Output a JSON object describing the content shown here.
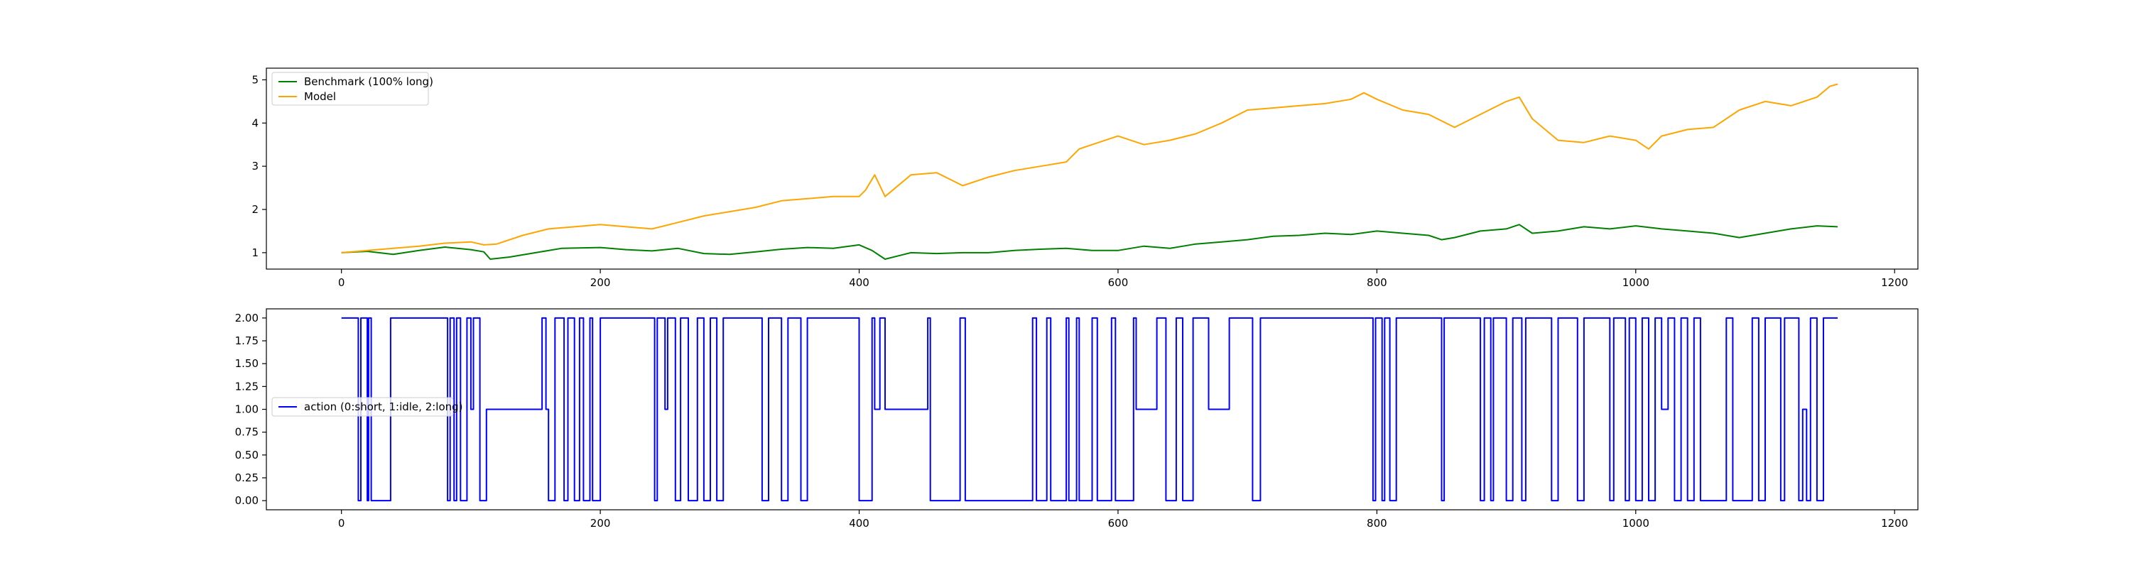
{
  "chart_data": [
    {
      "type": "line",
      "xlim": [
        -58,
        1218
      ],
      "ylim": [
        0.62,
        5.27
      ],
      "xticks": [
        0,
        200,
        400,
        600,
        800,
        1000,
        1200
      ],
      "yticks": [
        1,
        2,
        3,
        4,
        5
      ],
      "grid": false,
      "legend_placement": "top-left",
      "series": [
        {
          "name": "Benchmark (100% long)",
          "color": "#008000",
          "x": [
            0,
            20,
            40,
            60,
            80,
            100,
            110,
            115,
            130,
            150,
            170,
            200,
            220,
            240,
            260,
            280,
            300,
            320,
            340,
            360,
            380,
            400,
            410,
            420,
            440,
            460,
            480,
            500,
            520,
            540,
            560,
            580,
            600,
            620,
            640,
            660,
            680,
            700,
            720,
            740,
            760,
            780,
            800,
            820,
            840,
            850,
            860,
            880,
            900,
            910,
            920,
            940,
            960,
            980,
            1000,
            1020,
            1040,
            1060,
            1080,
            1100,
            1120,
            1140,
            1156
          ],
          "values": [
            1.0,
            1.03,
            0.96,
            1.05,
            1.13,
            1.07,
            1.02,
            0.85,
            0.9,
            1.0,
            1.1,
            1.12,
            1.07,
            1.04,
            1.1,
            0.98,
            0.96,
            1.02,
            1.08,
            1.12,
            1.1,
            1.18,
            1.05,
            0.85,
            1.0,
            0.98,
            1.0,
            1.0,
            1.05,
            1.08,
            1.1,
            1.05,
            1.05,
            1.15,
            1.1,
            1.2,
            1.25,
            1.3,
            1.38,
            1.4,
            1.45,
            1.42,
            1.5,
            1.45,
            1.4,
            1.3,
            1.35,
            1.5,
            1.55,
            1.65,
            1.45,
            1.5,
            1.6,
            1.55,
            1.62,
            1.55,
            1.5,
            1.45,
            1.35,
            1.45,
            1.55,
            1.62,
            1.6
          ]
        },
        {
          "name": "Model",
          "color": "#ffa500",
          "x": [
            0,
            20,
            40,
            60,
            80,
            100,
            110,
            120,
            140,
            160,
            180,
            200,
            220,
            240,
            260,
            280,
            300,
            320,
            340,
            360,
            380,
            400,
            405,
            412,
            420,
            440,
            460,
            480,
            500,
            520,
            540,
            560,
            570,
            580,
            600,
            620,
            640,
            660,
            680,
            700,
            720,
            740,
            760,
            780,
            790,
            800,
            820,
            840,
            860,
            880,
            900,
            910,
            920,
            940,
            960,
            980,
            1000,
            1010,
            1020,
            1040,
            1060,
            1080,
            1100,
            1120,
            1140,
            1150,
            1156
          ],
          "values": [
            1.0,
            1.05,
            1.1,
            1.15,
            1.22,
            1.25,
            1.18,
            1.2,
            1.4,
            1.55,
            1.6,
            1.65,
            1.6,
            1.55,
            1.7,
            1.85,
            1.95,
            2.05,
            2.2,
            2.25,
            2.3,
            2.3,
            2.45,
            2.8,
            2.3,
            2.8,
            2.85,
            2.55,
            2.75,
            2.9,
            3.0,
            3.1,
            3.4,
            3.5,
            3.7,
            3.5,
            3.6,
            3.75,
            4.0,
            4.3,
            4.35,
            4.4,
            4.45,
            4.55,
            4.7,
            4.55,
            4.3,
            4.2,
            3.9,
            4.2,
            4.5,
            4.6,
            4.1,
            3.6,
            3.55,
            3.7,
            3.6,
            3.4,
            3.7,
            3.85,
            3.9,
            4.3,
            4.5,
            4.4,
            4.6,
            4.85,
            4.9
          ]
        }
      ]
    },
    {
      "type": "line",
      "xlim": [
        -58,
        1218
      ],
      "ylim": [
        -0.1,
        2.1
      ],
      "xticks": [
        0,
        200,
        400,
        600,
        800,
        1000,
        1200
      ],
      "yticks": [
        0.0,
        0.25,
        0.5,
        0.75,
        1.0,
        1.25,
        1.5,
        1.75,
        2.0
      ],
      "ytick_labels": [
        "0.00",
        "0.25",
        "0.50",
        "0.75",
        "1.00",
        "1.25",
        "1.50",
        "1.75",
        "2.00"
      ],
      "grid": false,
      "legend_placement": "center-left",
      "series": [
        {
          "name": "action (0:short, 1:idle, 2:long)",
          "color": "#0000ff",
          "step": true,
          "x": [
            0,
            13,
            15,
            16,
            20,
            21,
            23,
            25,
            38,
            82,
            84,
            87,
            89,
            92,
            97,
            100,
            102,
            107,
            112,
            155,
            158,
            160,
            165,
            172,
            175,
            180,
            184,
            187,
            192,
            194,
            200,
            242,
            244,
            250,
            252,
            258,
            262,
            268,
            275,
            280,
            285,
            290,
            295,
            325,
            330,
            340,
            345,
            355,
            360,
            400,
            410,
            412,
            416,
            420,
            453,
            455,
            478,
            482,
            534,
            537,
            545,
            548,
            560,
            562,
            568,
            570,
            580,
            584,
            595,
            598,
            612,
            614,
            630,
            637,
            645,
            650,
            658,
            670,
            686,
            704,
            710,
            797,
            799,
            804,
            806,
            810,
            815,
            850,
            852,
            880,
            883,
            888,
            890,
            900,
            905,
            912,
            915,
            935,
            940,
            955,
            960,
            980,
            983,
            992,
            995,
            1000,
            1005,
            1010,
            1015,
            1020,
            1025,
            1030,
            1035,
            1040,
            1045,
            1050,
            1070,
            1075,
            1090,
            1095,
            1100,
            1112,
            1115,
            1126,
            1129,
            1132,
            1135,
            1140,
            1145,
            1156
          ],
          "values": [
            2,
            0,
            2,
            2,
            0,
            2,
            0,
            0,
            2,
            0,
            2,
            0,
            2,
            0,
            2,
            1,
            2,
            0,
            1,
            2,
            1,
            0,
            2,
            0,
            2,
            0,
            2,
            0,
            2,
            0,
            2,
            0,
            2,
            1,
            2,
            0,
            2,
            0,
            2,
            0,
            2,
            0,
            2,
            0,
            2,
            0,
            2,
            0,
            2,
            0,
            2,
            1,
            2,
            1,
            2,
            0,
            2,
            0,
            2,
            0,
            2,
            0,
            2,
            0,
            2,
            0,
            2,
            0,
            2,
            0,
            2,
            1,
            2,
            0,
            2,
            0,
            2,
            1,
            2,
            0,
            2,
            0,
            2,
            0,
            2,
            0,
            2,
            0,
            2,
            0,
            2,
            0,
            2,
            0,
            2,
            0,
            2,
            0,
            2,
            0,
            2,
            0,
            2,
            0,
            2,
            0,
            2,
            0,
            2,
            1,
            2,
            0,
            2,
            0,
            2,
            0,
            2,
            0,
            2,
            0,
            2,
            0,
            2,
            0,
            1,
            0,
            2,
            0,
            2,
            2
          ]
        }
      ]
    }
  ]
}
